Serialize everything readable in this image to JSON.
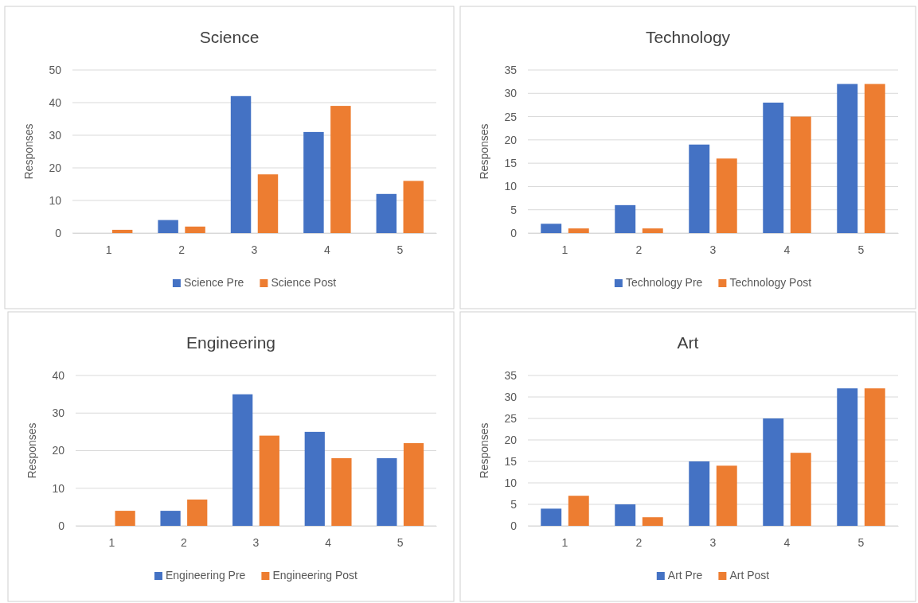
{
  "chart_data": [
    {
      "type": "bar",
      "title": "Science",
      "ylabel": "Responses",
      "categories": [
        "1",
        "2",
        "3",
        "4",
        "5"
      ],
      "ylim": [
        0,
        50
      ],
      "yticks": [
        0,
        10,
        20,
        30,
        40,
        50
      ],
      "grid": "y",
      "legend": "bottom",
      "series": [
        {
          "name": "Science Pre",
          "color": "#4472c4",
          "values": [
            0,
            4,
            42,
            31,
            12
          ]
        },
        {
          "name": "Science Post",
          "color": "#ed7d31",
          "values": [
            1,
            2,
            18,
            39,
            16
          ]
        }
      ]
    },
    {
      "type": "bar",
      "title": "Technology",
      "ylabel": "Responses",
      "categories": [
        "1",
        "2",
        "3",
        "4",
        "5"
      ],
      "ylim": [
        0,
        35
      ],
      "yticks": [
        0,
        5,
        10,
        15,
        20,
        25,
        30,
        35
      ],
      "grid": "y",
      "legend": "bottom",
      "series": [
        {
          "name": "Technology Pre",
          "color": "#4472c4",
          "values": [
            2,
            6,
            19,
            28,
            32
          ]
        },
        {
          "name": "Technology Post",
          "color": "#ed7d31",
          "values": [
            1,
            1,
            16,
            25,
            32
          ]
        }
      ]
    },
    {
      "type": "bar",
      "title": "Engineering",
      "ylabel": "Responses",
      "categories": [
        "1",
        "2",
        "3",
        "4",
        "5"
      ],
      "ylim": [
        0,
        40
      ],
      "yticks": [
        0,
        10,
        20,
        30,
        40
      ],
      "grid": "y",
      "legend": "bottom",
      "series": [
        {
          "name": "Engineering Pre",
          "color": "#4472c4",
          "values": [
            0,
            4,
            35,
            25,
            18
          ]
        },
        {
          "name": "Engineering Post",
          "color": "#ed7d31",
          "values": [
            4,
            7,
            24,
            18,
            22
          ]
        }
      ]
    },
    {
      "type": "bar",
      "title": "Art",
      "ylabel": "Responses",
      "categories": [
        "1",
        "2",
        "3",
        "4",
        "5"
      ],
      "ylim": [
        0,
        35
      ],
      "yticks": [
        0,
        5,
        10,
        15,
        20,
        25,
        30,
        35
      ],
      "grid": "y",
      "legend": "bottom",
      "series": [
        {
          "name": "Art Pre",
          "color": "#4472c4",
          "values": [
            4,
            5,
            15,
            25,
            32
          ]
        },
        {
          "name": "Art Post",
          "color": "#ed7d31",
          "values": [
            7,
            2,
            14,
            17,
            32
          ]
        }
      ]
    }
  ]
}
